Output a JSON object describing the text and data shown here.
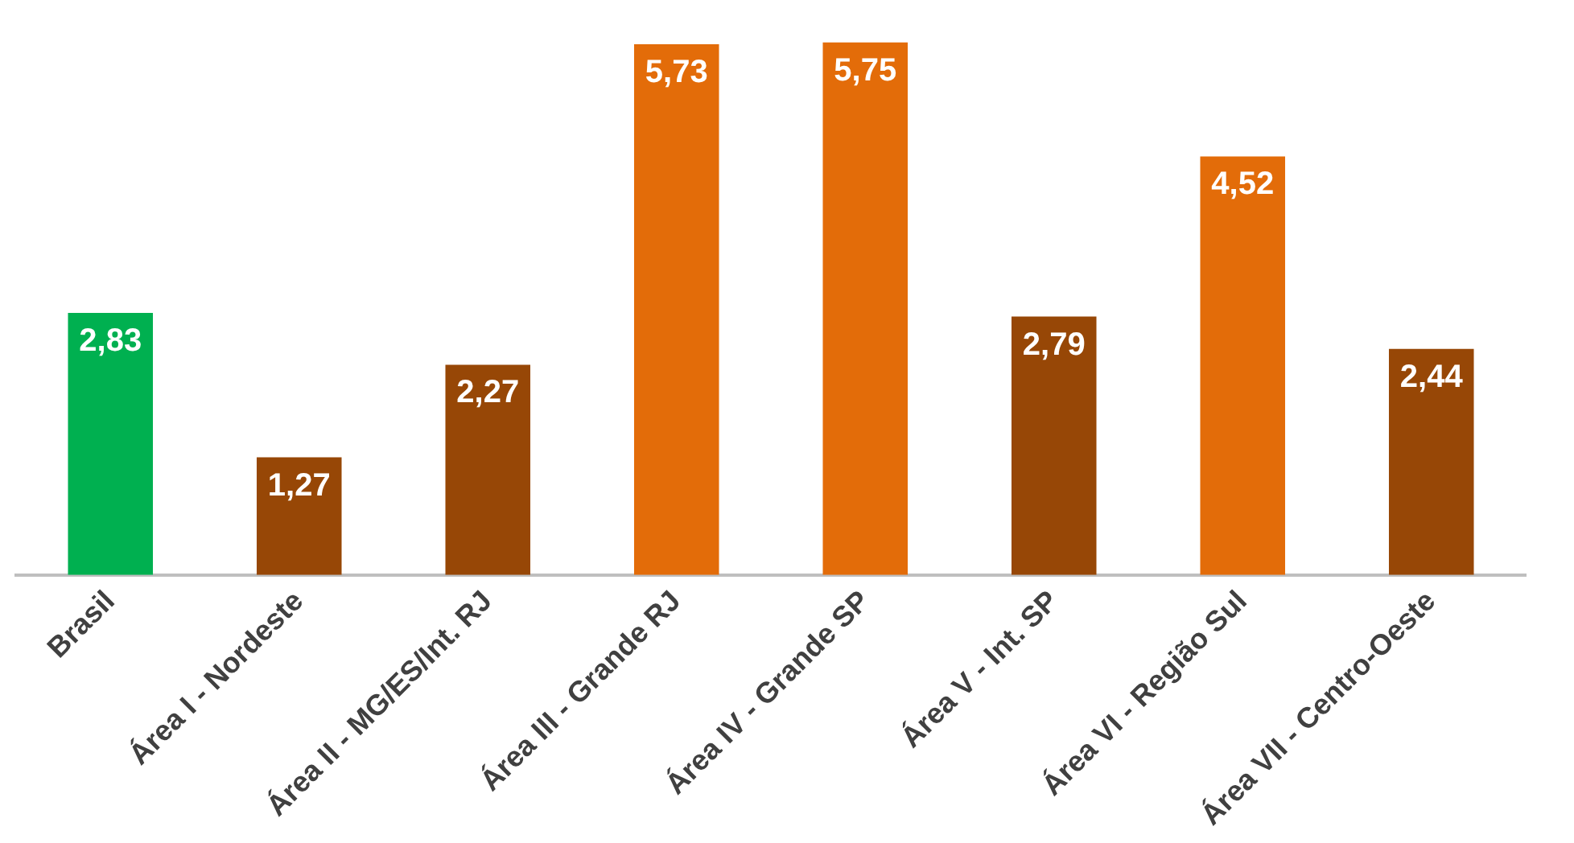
{
  "chart_data": {
    "type": "bar",
    "categories": [
      "Brasil",
      "Área I - Nordeste",
      "Área II - MG/ES/Int. RJ",
      "Área III - Grande RJ",
      "Área IV - Grande SP",
      "Área V - Int. SP",
      "Área VI - Região Sul",
      "Área VII - Centro-Oeste"
    ],
    "values": [
      2.83,
      1.27,
      2.27,
      5.73,
      5.75,
      2.79,
      4.52,
      2.44
    ],
    "colors": [
      "#00b050",
      "#974706",
      "#974706",
      "#e36c09",
      "#e36c09",
      "#974706",
      "#e36c09",
      "#974706"
    ],
    "value_labels": [
      "2,83",
      "1,27",
      "2,27",
      "5,73",
      "5,75",
      "2,79",
      "4,52",
      "2,44"
    ],
    "grid": false,
    "legend": false
  }
}
